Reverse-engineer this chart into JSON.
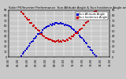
{
  "title_left": "Solar PV/Inverter Performance  Sun Altitude Angle & Sun Incidence Angle on PV Panels",
  "series": [
    {
      "label": "Sun Altitude Angle",
      "color": "#0000cc",
      "markersize": 0.8
    },
    {
      "label": "Sun Incidence Angle",
      "color": "#cc0000",
      "markersize": 0.8
    }
  ],
  "background_color": "#c8c8c8",
  "plot_bg_color": "#c8c8c8",
  "grid_color": "#ffffff",
  "ylim": [
    0,
    90
  ],
  "yticks": [
    0,
    10,
    20,
    30,
    40,
    50,
    60,
    70,
    80,
    90
  ],
  "title_fontsize": 2.8,
  "tick_fontsize": 2.5,
  "legend_fontsize": 2.5,
  "n_points": 80,
  "peak_alt": 65,
  "min_inc": 30
}
